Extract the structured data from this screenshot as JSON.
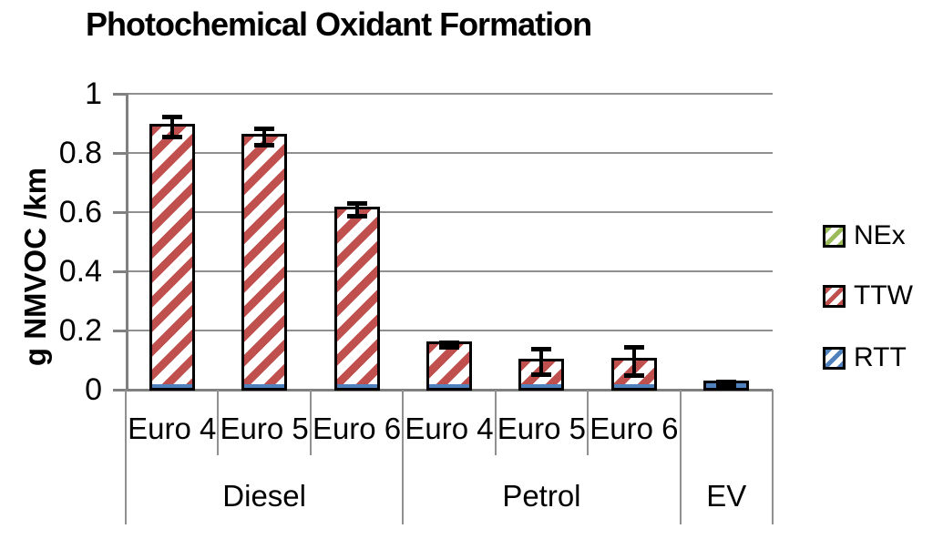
{
  "chart_data": {
    "type": "bar",
    "stacked": true,
    "title": "Photochemical Oxidant Formation",
    "ylabel": "g NMVOC /km",
    "ylim": [
      0,
      1
    ],
    "yticks": [
      {
        "value": 0,
        "label": "0"
      },
      {
        "value": 0.2,
        "label": "0.2"
      },
      {
        "value": 0.4,
        "label": "0.4"
      },
      {
        "value": 0.6,
        "label": "0.6"
      },
      {
        "value": 0.8,
        "label": "0.8"
      },
      {
        "value": 1,
        "label": "1"
      }
    ],
    "groups": [
      {
        "label": "Diesel",
        "categories": [
          "Euro 4",
          "Euro 5",
          "Euro 6"
        ]
      },
      {
        "label": "Petrol",
        "categories": [
          "Euro 4",
          "Euro 5",
          "Euro 6"
        ]
      },
      {
        "label": "EV",
        "categories": [
          ""
        ]
      }
    ],
    "categories": [
      "Euro 4",
      "Euro 5",
      "Euro 6",
      "Euro 4",
      "Euro 5",
      "Euro 6",
      ""
    ],
    "series": [
      {
        "name": "NEx",
        "color": "#9BBB59",
        "values": [
          0,
          0,
          0,
          0,
          0,
          0,
          0
        ]
      },
      {
        "name": "TTW",
        "color": "#C0504D",
        "values": [
          0.878,
          0.843,
          0.598,
          0.141,
          0.083,
          0.086,
          0.008
        ]
      },
      {
        "name": "RTT",
        "color": "#4F81BD",
        "values": [
          0.012,
          0.012,
          0.012,
          0.012,
          0.012,
          0.012,
          0.014
        ]
      }
    ],
    "bar_totals": [
      0.89,
      0.855,
      0.61,
      0.153,
      0.095,
      0.098,
      0.022
    ],
    "error_bars": [
      0.034,
      0.028,
      0.022,
      0.008,
      0.042,
      0.048,
      0.006
    ],
    "legend": [
      "NEx",
      "TTW",
      "RTT"
    ],
    "legend_position": "right",
    "grid": true,
    "hatch": "diagonal-forward",
    "colors": {
      "bar_outline": "#000000",
      "gridline": "#909090",
      "axis": "#808080",
      "error_bar": "#000000",
      "text": "#000000"
    }
  }
}
